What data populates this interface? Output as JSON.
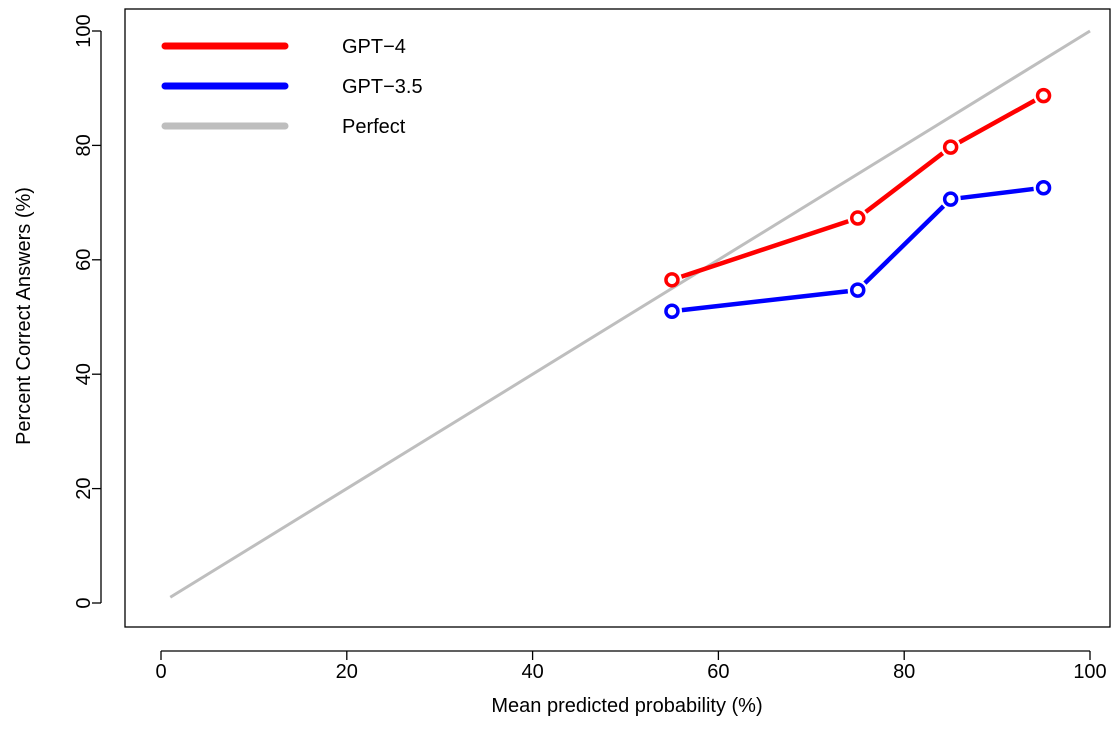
{
  "chart_data": {
    "type": "line",
    "title": "",
    "xlabel": "Mean predicted probability (%)",
    "ylabel": "Percent Correct Answers (%)",
    "xlim": [
      0,
      100
    ],
    "ylim": [
      0,
      100
    ],
    "x_ticks": [
      0,
      20,
      40,
      60,
      80,
      100
    ],
    "y_ticks": [
      0,
      20,
      40,
      60,
      80,
      100
    ],
    "grid": false,
    "legend_position": "top-left",
    "series": [
      {
        "name": "GPT−4",
        "color": "#ff0000",
        "markers": true,
        "x": [
          55,
          75,
          85,
          95
        ],
        "y": [
          56.5,
          67.3,
          79.7,
          88.7
        ]
      },
      {
        "name": "GPT−3.5",
        "color": "#0000ff",
        "markers": true,
        "x": [
          55,
          75,
          85,
          95
        ],
        "y": [
          51,
          54.7,
          70.6,
          72.6
        ]
      },
      {
        "name": "Perfect",
        "color": "#bebebe",
        "markers": false,
        "x": [
          1,
          100
        ],
        "y": [
          1,
          100
        ]
      }
    ]
  }
}
